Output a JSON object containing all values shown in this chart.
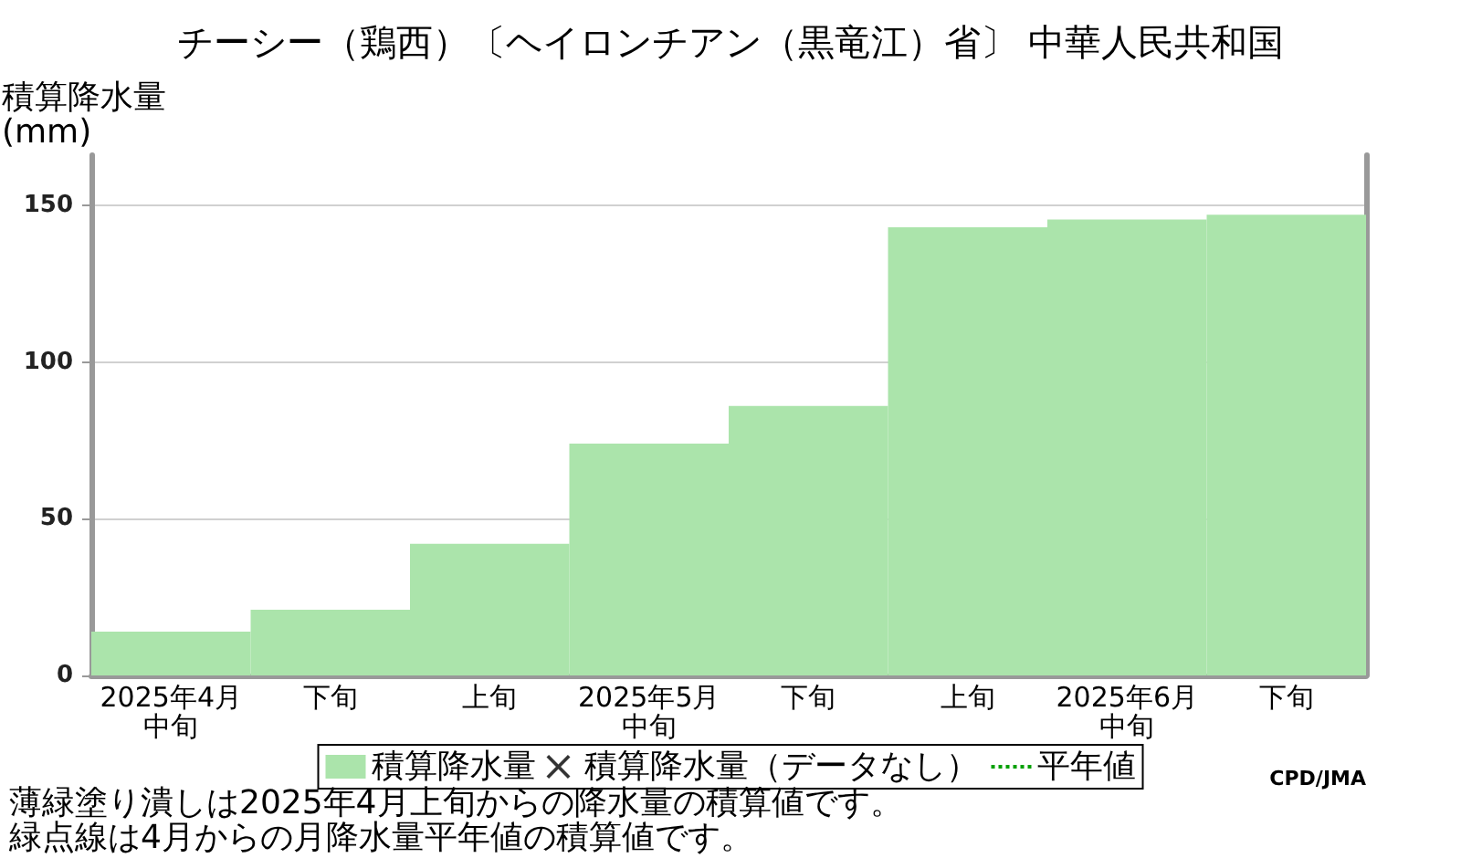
{
  "chart_data": {
    "type": "bar",
    "title": "チーシー（鶏西）〔ヘイロンチアン（黒竜江）省〕 中華人民共和国",
    "ylabel": "積算降水量(mm)",
    "categories": [
      "2025年4月中旬",
      "下旬",
      "上旬",
      "2025年5月中旬",
      "下旬",
      "上旬",
      "2025年6月中旬",
      "下旬"
    ],
    "series": [
      {
        "name": "積算降水量",
        "color": "#abe4ab",
        "values": [
          14,
          21,
          42,
          74,
          86,
          143,
          145.5,
          147
        ]
      },
      {
        "name": "積算降水量（データなし）",
        "type": "scatter",
        "marker": "cross",
        "color": "#000000",
        "values": [
          null,
          null,
          null,
          null,
          null,
          null,
          null,
          null
        ]
      },
      {
        "name": "平年値",
        "type": "line",
        "marker": "none",
        "line_style": "dotted",
        "color": "#00a000",
        "values": [
          null,
          null,
          null,
          null,
          null,
          null,
          null,
          null
        ]
      }
    ],
    "ylim": [
      0,
      166
    ],
    "yticks": [
      0,
      50,
      100,
      150
    ],
    "grid": "y",
    "legend": "bottom",
    "annotations": [
      "CPD/JMA",
      "薄緑塗り潰しは2025年4月上旬からの降水量の積算値です。",
      "緑点線は4月からの月降水量平年値の積算値です。"
    ]
  }
}
